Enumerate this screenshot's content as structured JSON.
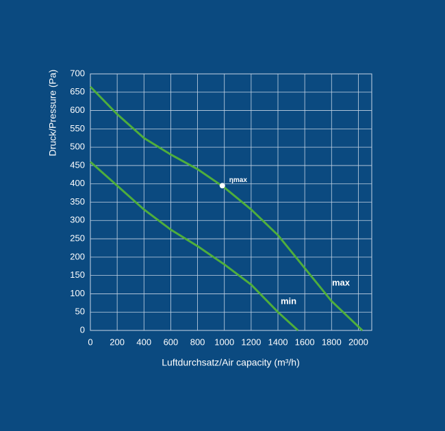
{
  "chart_data": {
    "type": "line",
    "x_label": "Luftdurchsatz/Air capacity (m³/h)",
    "y_label": "Druck/Pressure (Pa)",
    "xlim": [
      0,
      2100
    ],
    "ylim": [
      0,
      700
    ],
    "xticks": [
      0,
      200,
      400,
      600,
      800,
      1000,
      1200,
      1400,
      1600,
      1800,
      2000
    ],
    "yticks": [
      0,
      50,
      100,
      150,
      200,
      250,
      300,
      350,
      400,
      450,
      500,
      550,
      600,
      650,
      700
    ],
    "grid": true,
    "series": [
      {
        "name": "max",
        "color": "#4fae3c",
        "x": [
          0,
          200,
          400,
          600,
          800,
          1000,
          1200,
          1400,
          1600,
          1800,
          2030
        ],
        "values": [
          665,
          590,
          525,
          480,
          440,
          390,
          330,
          260,
          170,
          80,
          0
        ]
      },
      {
        "name": "min",
        "color": "#4fae3c",
        "x": [
          0,
          200,
          400,
          600,
          800,
          1000,
          1200,
          1400,
          1550
        ],
        "values": [
          460,
          395,
          330,
          275,
          230,
          180,
          125,
          50,
          0
        ]
      }
    ],
    "annotation": {
      "text": "ηmax",
      "x": 985,
      "y": 395
    }
  }
}
